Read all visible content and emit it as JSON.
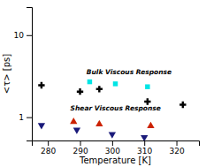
{
  "chart_data": {
    "type": "scatter",
    "log": "y",
    "xlabel": "Temperature [K]",
    "ylabel": "<τ> [ps]",
    "xlim": [
      275,
      327
    ],
    "ylim": [
      0.52,
      22
    ],
    "xticks": [
      280,
      290,
      300,
      310,
      320
    ],
    "yticks": [
      1,
      10
    ],
    "series": [
      {
        "color": "#00e5e5",
        "marker": "square",
        "x": [
          293,
          301,
          311
        ],
        "values": [
          2.7,
          2.55,
          2.35
        ]
      },
      {
        "color": "black",
        "marker": "plus",
        "x": [
          278,
          290,
          296,
          311,
          322
        ],
        "values": [
          2.45,
          2.05,
          2.2,
          1.55,
          1.42
        ]
      },
      {
        "color": "#cc2200",
        "marker": "triangle-up",
        "x": [
          288,
          296,
          312
        ],
        "values": [
          0.88,
          0.82,
          0.78
        ]
      },
      {
        "color": "#1a1a7a",
        "marker": "triangle-down",
        "x": [
          278,
          289,
          300,
          310
        ],
        "values": [
          0.8,
          0.7,
          0.62,
          0.57
        ]
      }
    ],
    "annotations": [
      {
        "text": "Bulk Viscous Response",
        "x": 292,
        "y": 3.3
      },
      {
        "text": "Shear Viscous Response",
        "x": 287,
        "y": 1.22
      }
    ]
  }
}
